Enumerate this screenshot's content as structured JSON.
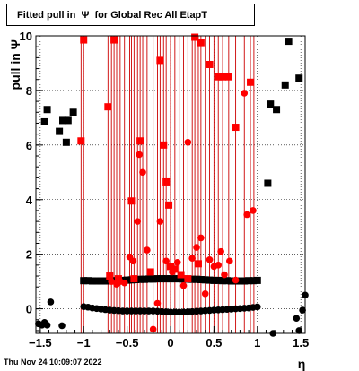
{
  "title": "Fitted pull in  Ψ  for Global Rec All EtapT",
  "footer": "Thu Nov 24 10:09:07 2022",
  "chart_data": {
    "type": "scatter",
    "title": "Fitted pull in  Ψ  for Global Rec All EtapT",
    "xlabel": "η",
    "ylabel": "pull in  Ψ",
    "xlim": [
      -1.55,
      1.55
    ],
    "ylim": [
      -0.9,
      10
    ],
    "grid": true,
    "x_ticks": [
      -1.5,
      -1,
      -0.5,
      0,
      0.5,
      1,
      1.5
    ],
    "x_tick_labels": [
      "−1.5",
      "−1",
      "−0.5",
      "0",
      "0.5",
      "1",
      "1.5"
    ],
    "y_ticks": [
      0,
      2,
      4,
      6,
      8,
      10
    ],
    "y_tick_labels": [
      "0",
      "2",
      "4",
      "6",
      "8",
      "10"
    ],
    "colors": {
      "red": "#ff0000",
      "black": "#000000",
      "red_error": "#cc0000"
    },
    "series": [
      {
        "color": "black",
        "marker": "square",
        "points": [
          {
            "x": -1.45,
            "y": 6.85
          },
          {
            "x": -1.42,
            "y": 7.3
          },
          {
            "x": -1.28,
            "y": 6.5
          },
          {
            "x": -1.24,
            "y": 6.9
          },
          {
            "x": -1.2,
            "y": 6.1
          },
          {
            "x": -1.18,
            "y": 6.9
          },
          {
            "x": -1.12,
            "y": 7.2
          },
          {
            "x": 1.12,
            "y": 4.6
          },
          {
            "x": 1.15,
            "y": 7.5
          },
          {
            "x": 1.22,
            "y": 7.3
          },
          {
            "x": 1.32,
            "y": 8.2
          },
          {
            "x": 1.36,
            "y": 9.8
          },
          {
            "x": 1.48,
            "y": 8.45
          },
          {
            "x": -1.0,
            "y": 1.03
          },
          {
            "x": -0.95,
            "y": 1.03
          },
          {
            "x": -0.9,
            "y": 1.02
          },
          {
            "x": -0.85,
            "y": 1.02
          },
          {
            "x": -0.8,
            "y": 1.02
          },
          {
            "x": -0.75,
            "y": 1.02
          },
          {
            "x": -0.7,
            "y": 1.03
          },
          {
            "x": -0.65,
            "y": 1.03
          },
          {
            "x": -0.6,
            "y": 1.04
          },
          {
            "x": -0.55,
            "y": 1.04
          },
          {
            "x": -0.5,
            "y": 1.05
          },
          {
            "x": -0.45,
            "y": 1.06
          },
          {
            "x": -0.4,
            "y": 1.07
          },
          {
            "x": -0.35,
            "y": 1.08
          },
          {
            "x": -0.3,
            "y": 1.08
          },
          {
            "x": -0.25,
            "y": 1.09
          },
          {
            "x": -0.2,
            "y": 1.09
          },
          {
            "x": -0.15,
            "y": 1.1
          },
          {
            "x": -0.1,
            "y": 1.1
          },
          {
            "x": -0.05,
            "y": 1.1
          },
          {
            "x": 0.0,
            "y": 1.1
          },
          {
            "x": 0.05,
            "y": 1.1
          },
          {
            "x": 0.1,
            "y": 1.1
          },
          {
            "x": 0.15,
            "y": 1.09
          },
          {
            "x": 0.2,
            "y": 1.09
          },
          {
            "x": 0.25,
            "y": 1.08
          },
          {
            "x": 0.3,
            "y": 1.08
          },
          {
            "x": 0.35,
            "y": 1.07
          },
          {
            "x": 0.4,
            "y": 1.06
          },
          {
            "x": 0.45,
            "y": 1.05
          },
          {
            "x": 0.5,
            "y": 1.04
          },
          {
            "x": 0.55,
            "y": 1.04
          },
          {
            "x": 0.6,
            "y": 1.03
          },
          {
            "x": 0.65,
            "y": 1.03
          },
          {
            "x": 0.7,
            "y": 1.02
          },
          {
            "x": 0.75,
            "y": 1.02
          },
          {
            "x": 0.8,
            "y": 1.02
          },
          {
            "x": 0.85,
            "y": 1.02
          },
          {
            "x": 0.9,
            "y": 1.03
          },
          {
            "x": 0.95,
            "y": 1.03
          },
          {
            "x": 1.0,
            "y": 1.04
          }
        ]
      },
      {
        "color": "black",
        "marker": "circle",
        "points": [
          {
            "x": -1.52,
            "y": -0.55
          },
          {
            "x": -1.48,
            "y": -0.6
          },
          {
            "x": -1.45,
            "y": -0.5
          },
          {
            "x": -1.42,
            "y": -0.6
          },
          {
            "x": -1.38,
            "y": 0.25
          },
          {
            "x": -1.25,
            "y": -0.62
          },
          {
            "x": 1.18,
            "y": -0.9
          },
          {
            "x": 1.45,
            "y": -0.35
          },
          {
            "x": 1.48,
            "y": -0.8
          },
          {
            "x": 1.52,
            "y": -0.05
          },
          {
            "x": 1.55,
            "y": 0.5
          },
          {
            "x": -1.0,
            "y": 0.08
          },
          {
            "x": -0.95,
            "y": 0.06
          },
          {
            "x": -0.9,
            "y": 0.03
          },
          {
            "x": -0.85,
            "y": 0.01
          },
          {
            "x": -0.8,
            "y": -0.01
          },
          {
            "x": -0.75,
            "y": -0.03
          },
          {
            "x": -0.7,
            "y": -0.05
          },
          {
            "x": -0.65,
            "y": -0.06
          },
          {
            "x": -0.6,
            "y": -0.07
          },
          {
            "x": -0.55,
            "y": -0.08
          },
          {
            "x": -0.5,
            "y": -0.08
          },
          {
            "x": -0.45,
            "y": -0.08
          },
          {
            "x": -0.4,
            "y": -0.08
          },
          {
            "x": -0.35,
            "y": -0.08
          },
          {
            "x": -0.3,
            "y": -0.08
          },
          {
            "x": -0.25,
            "y": -0.08
          },
          {
            "x": -0.2,
            "y": -0.08
          },
          {
            "x": -0.15,
            "y": -0.09
          },
          {
            "x": -0.1,
            "y": -0.1
          },
          {
            "x": -0.05,
            "y": -0.11
          },
          {
            "x": 0.0,
            "y": -0.12
          },
          {
            "x": 0.05,
            "y": -0.12
          },
          {
            "x": 0.1,
            "y": -0.12
          },
          {
            "x": 0.15,
            "y": -0.12
          },
          {
            "x": 0.2,
            "y": -0.11
          },
          {
            "x": 0.25,
            "y": -0.1
          },
          {
            "x": 0.3,
            "y": -0.09
          },
          {
            "x": 0.35,
            "y": -0.08
          },
          {
            "x": 0.4,
            "y": -0.07
          },
          {
            "x": 0.45,
            "y": -0.06
          },
          {
            "x": 0.5,
            "y": -0.05
          },
          {
            "x": 0.55,
            "y": -0.04
          },
          {
            "x": 0.6,
            "y": -0.03
          },
          {
            "x": 0.65,
            "y": -0.02
          },
          {
            "x": 0.7,
            "y": -0.01
          },
          {
            "x": 0.75,
            "y": 0.0
          },
          {
            "x": 0.8,
            "y": 0.01
          },
          {
            "x": 0.85,
            "y": 0.02
          },
          {
            "x": 0.9,
            "y": 0.03
          },
          {
            "x": 0.95,
            "y": 0.05
          },
          {
            "x": 1.0,
            "y": 0.07
          }
        ]
      },
      {
        "color": "red",
        "marker": "square",
        "points": [
          {
            "x": -1.0,
            "y": 9.85
          },
          {
            "x": -1.03,
            "y": 6.15
          },
          {
            "x": -0.72,
            "y": 7.4
          },
          {
            "x": -0.65,
            "y": 9.85
          },
          {
            "x": -0.7,
            "y": 1.2
          },
          {
            "x": -0.6,
            "y": 1.1
          },
          {
            "x": -0.45,
            "y": 3.95
          },
          {
            "x": -0.42,
            "y": 1.1
          },
          {
            "x": -0.35,
            "y": 6.15
          },
          {
            "x": -0.12,
            "y": 9.1
          },
          {
            "x": -0.08,
            "y": 6.0
          },
          {
            "x": -0.05,
            "y": 4.65
          },
          {
            "x": -0.02,
            "y": 3.8
          },
          {
            "x": 0.0,
            "y": 1.55
          },
          {
            "x": 0.05,
            "y": 1.45
          },
          {
            "x": 0.28,
            "y": 9.95
          },
          {
            "x": 0.35,
            "y": 9.75
          },
          {
            "x": 0.32,
            "y": 1.65
          },
          {
            "x": 0.45,
            "y": 8.95
          },
          {
            "x": 0.55,
            "y": 8.5
          },
          {
            "x": 0.6,
            "y": 8.5
          },
          {
            "x": 0.67,
            "y": 8.5
          },
          {
            "x": 0.75,
            "y": 6.65
          },
          {
            "x": 0.92,
            "y": 8.3
          },
          {
            "x": -0.23,
            "y": 1.35
          },
          {
            "x": 0.12,
            "y": 1.25
          },
          {
            "x": 0.2,
            "y": 1.1
          }
        ]
      },
      {
        "color": "red",
        "marker": "circle",
        "points": [
          {
            "x": -0.68,
            "y": 1.0
          },
          {
            "x": -0.62,
            "y": 0.9
          },
          {
            "x": -0.58,
            "y": 1.0
          },
          {
            "x": -0.53,
            "y": 0.95
          },
          {
            "x": -0.47,
            "y": 1.9
          },
          {
            "x": -0.43,
            "y": 1.75
          },
          {
            "x": -0.38,
            "y": 3.2
          },
          {
            "x": -0.36,
            "y": 5.65
          },
          {
            "x": -0.32,
            "y": 5.0
          },
          {
            "x": -0.27,
            "y": 2.15
          },
          {
            "x": -0.2,
            "y": -0.75
          },
          {
            "x": -0.15,
            "y": 0.2
          },
          {
            "x": -0.12,
            "y": 3.2
          },
          {
            "x": -0.05,
            "y": 1.75
          },
          {
            "x": 0.02,
            "y": 1.35
          },
          {
            "x": 0.08,
            "y": 1.7
          },
          {
            "x": 0.15,
            "y": 0.85
          },
          {
            "x": 0.2,
            "y": 6.1
          },
          {
            "x": 0.25,
            "y": 1.85
          },
          {
            "x": 0.3,
            "y": 2.25
          },
          {
            "x": 0.35,
            "y": 2.6
          },
          {
            "x": 0.4,
            "y": 0.55
          },
          {
            "x": 0.45,
            "y": 1.8
          },
          {
            "x": 0.5,
            "y": 1.55
          },
          {
            "x": 0.55,
            "y": 1.6
          },
          {
            "x": 0.58,
            "y": 2.1
          },
          {
            "x": 0.62,
            "y": 1.25
          },
          {
            "x": 0.68,
            "y": 1.75
          },
          {
            "x": 0.75,
            "y": 1.05
          },
          {
            "x": 0.85,
            "y": 7.9
          },
          {
            "x": 0.88,
            "y": 3.45
          },
          {
            "x": 0.95,
            "y": 3.6
          }
        ]
      }
    ],
    "error_bar_positions": [
      -1.03,
      -1.0,
      -0.72,
      -0.68,
      -0.65,
      -0.62,
      -0.58,
      -0.53,
      -0.47,
      -0.45,
      -0.42,
      -0.38,
      -0.35,
      -0.32,
      -0.27,
      -0.2,
      -0.15,
      -0.12,
      -0.08,
      -0.05,
      0.0,
      0.05,
      0.1,
      0.15,
      0.2,
      0.25,
      0.28,
      0.32,
      0.35,
      0.4,
      0.45,
      0.5,
      0.55,
      0.6,
      0.67,
      0.75,
      0.85,
      0.92,
      0.96
    ],
    "error_bar_range": [
      -0.9,
      10
    ]
  }
}
